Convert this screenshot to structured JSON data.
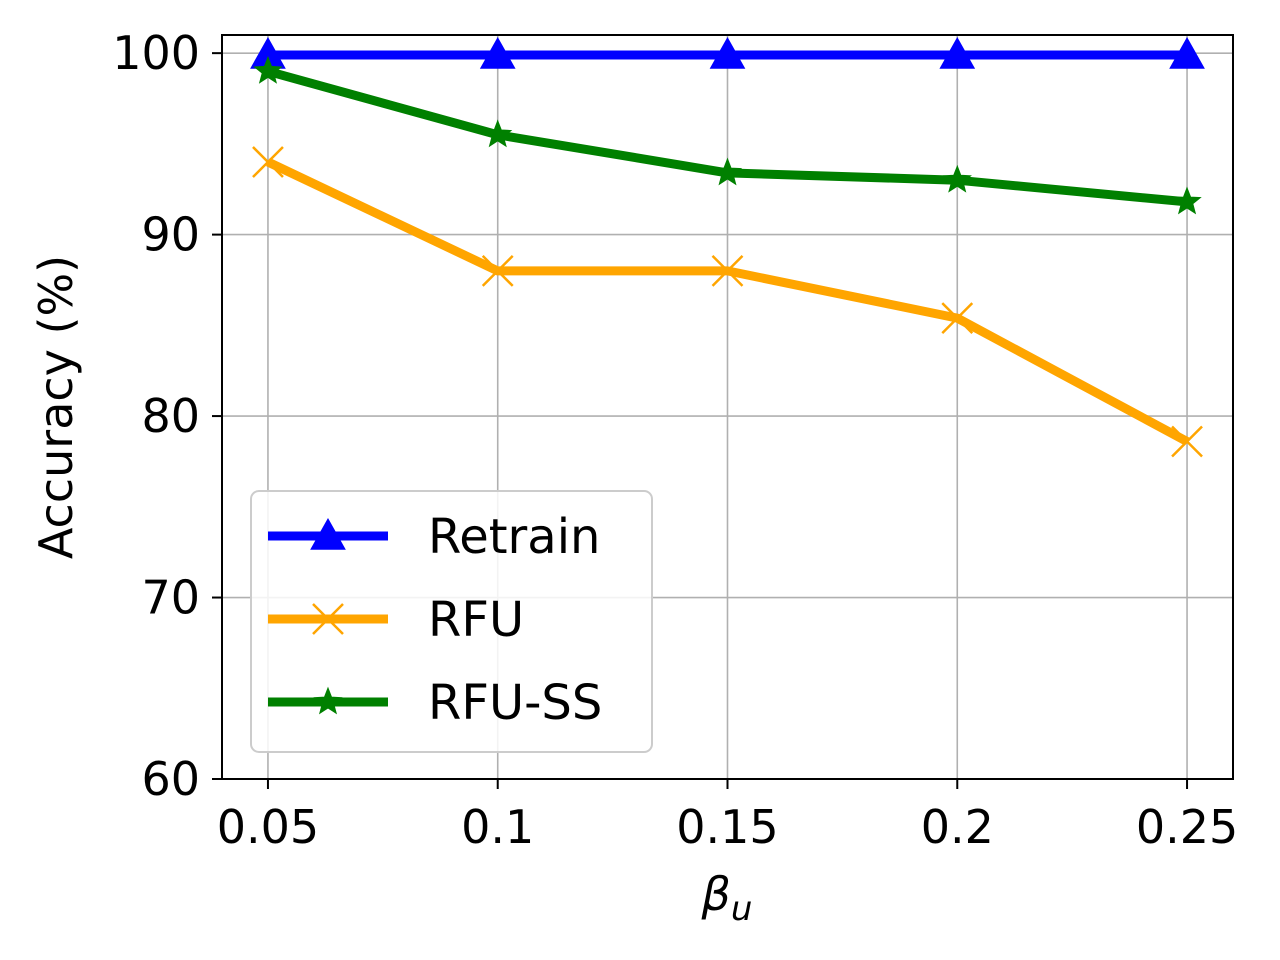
{
  "chart_data": {
    "type": "line",
    "title": "",
    "xlabel": "β",
    "xlabel_sub": "u",
    "ylabel": "Accuracy (%)",
    "x": [
      0.05,
      0.1,
      0.15,
      0.2,
      0.25
    ],
    "x_tick_labels": [
      "0.05",
      "0.1",
      "0.15",
      "0.2",
      "0.25"
    ],
    "xlim": [
      0.04,
      0.26
    ],
    "ylim": [
      60,
      101
    ],
    "y_ticks": [
      60,
      70,
      80,
      90,
      100
    ],
    "y_tick_labels": [
      "60",
      "70",
      "80",
      "90",
      "100"
    ],
    "grid": true,
    "legend_position": "lower-left",
    "series": [
      {
        "name": "Retrain",
        "values": [
          99.9,
          99.9,
          99.9,
          99.9,
          99.9
        ],
        "color": "#0000ff",
        "marker": "triangle"
      },
      {
        "name": "RFU",
        "values": [
          94.0,
          88.0,
          88.0,
          85.4,
          78.6
        ],
        "color": "#ffa500",
        "marker": "x"
      },
      {
        "name": "RFU-SS",
        "values": [
          99.0,
          95.5,
          93.4,
          93.0,
          91.8
        ],
        "color": "#008000",
        "marker": "star"
      }
    ]
  }
}
